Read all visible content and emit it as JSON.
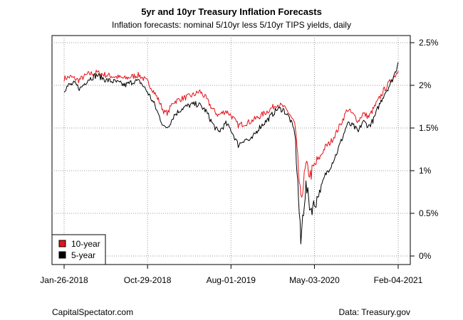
{
  "chart_data": {
    "type": "line",
    "title": "5yr and 10yr Treasury Inflation Forecasts",
    "subtitle": "Inflation forecasts: nominal 5/10yr less 5/10yr TIPS yields, daily",
    "xlabel": "",
    "ylabel": "",
    "x_ticks": [
      "Jan-26-2018",
      "Oct-29-2018",
      "Aug-01-2019",
      "May-03-2020",
      "Feb-04-2021"
    ],
    "y_ticks": [
      "0%",
      "0.5%",
      "1%",
      "1.5%",
      "2%",
      "2.5%"
    ],
    "ylim": [
      -0.1,
      2.6
    ],
    "xlim": [
      "2018-01-26",
      "2021-02-04"
    ],
    "grid": true,
    "legend_position": "bottom-left",
    "series": [
      {
        "name": "10-year",
        "color": "#e3131b",
        "points": [
          [
            "2018-01-26",
            2.08
          ],
          [
            "2018-02-15",
            2.1
          ],
          [
            "2018-03-15",
            2.06
          ],
          [
            "2018-04-15",
            2.13
          ],
          [
            "2018-05-15",
            2.15
          ],
          [
            "2018-06-15",
            2.12
          ],
          [
            "2018-07-15",
            2.1
          ],
          [
            "2018-08-15",
            2.08
          ],
          [
            "2018-09-15",
            2.11
          ],
          [
            "2018-10-01",
            2.12
          ],
          [
            "2018-10-29",
            2.04
          ],
          [
            "2018-11-15",
            1.95
          ],
          [
            "2018-12-01",
            1.85
          ],
          [
            "2018-12-24",
            1.68
          ],
          [
            "2019-01-05",
            1.68
          ],
          [
            "2019-01-20",
            1.8
          ],
          [
            "2019-02-15",
            1.84
          ],
          [
            "2019-03-15",
            1.87
          ],
          [
            "2019-04-01",
            1.89
          ],
          [
            "2019-04-20",
            1.93
          ],
          [
            "2019-05-10",
            1.85
          ],
          [
            "2019-06-01",
            1.72
          ],
          [
            "2019-06-20",
            1.65
          ],
          [
            "2019-07-15",
            1.7
          ],
          [
            "2019-08-01",
            1.65
          ],
          [
            "2019-08-25",
            1.53
          ],
          [
            "2019-09-10",
            1.55
          ],
          [
            "2019-10-01",
            1.57
          ],
          [
            "2019-11-01",
            1.63
          ],
          [
            "2019-12-01",
            1.7
          ],
          [
            "2019-12-31",
            1.78
          ],
          [
            "2020-01-20",
            1.75
          ],
          [
            "2020-02-10",
            1.67
          ],
          [
            "2020-02-28",
            1.55
          ],
          [
            "2020-03-09",
            1.1
          ],
          [
            "2020-03-19",
            0.63
          ],
          [
            "2020-03-25",
            0.8
          ],
          [
            "2020-04-05",
            1.05
          ],
          [
            "2020-04-20",
            0.95
          ],
          [
            "2020-05-03",
            1.05
          ],
          [
            "2020-05-20",
            1.15
          ],
          [
            "2020-06-08",
            1.28
          ],
          [
            "2020-06-25",
            1.33
          ],
          [
            "2020-07-15",
            1.45
          ],
          [
            "2020-08-05",
            1.6
          ],
          [
            "2020-08-20",
            1.72
          ],
          [
            "2020-09-10",
            1.65
          ],
          [
            "2020-09-25",
            1.58
          ],
          [
            "2020-10-10",
            1.67
          ],
          [
            "2020-10-30",
            1.63
          ],
          [
            "2020-11-15",
            1.73
          ],
          [
            "2020-12-01",
            1.83
          ],
          [
            "2020-12-20",
            1.95
          ],
          [
            "2021-01-10",
            2.05
          ],
          [
            "2021-01-25",
            2.12
          ],
          [
            "2021-02-04",
            2.17
          ]
        ]
      },
      {
        "name": "5-year",
        "color": "#000000",
        "points": [
          [
            "2018-01-26",
            1.95
          ],
          [
            "2018-02-10",
            2.0
          ],
          [
            "2018-03-01",
            2.02
          ],
          [
            "2018-03-20",
            1.96
          ],
          [
            "2018-04-15",
            2.07
          ],
          [
            "2018-05-15",
            2.12
          ],
          [
            "2018-06-15",
            2.06
          ],
          [
            "2018-07-15",
            2.04
          ],
          [
            "2018-08-15",
            2.0
          ],
          [
            "2018-09-15",
            2.05
          ],
          [
            "2018-10-05",
            2.04
          ],
          [
            "2018-10-29",
            1.92
          ],
          [
            "2018-11-20",
            1.78
          ],
          [
            "2018-12-05",
            1.65
          ],
          [
            "2018-12-24",
            1.5
          ],
          [
            "2019-01-05",
            1.52
          ],
          [
            "2019-01-25",
            1.65
          ],
          [
            "2019-02-20",
            1.73
          ],
          [
            "2019-03-20",
            1.77
          ],
          [
            "2019-04-15",
            1.78
          ],
          [
            "2019-05-10",
            1.7
          ],
          [
            "2019-06-01",
            1.55
          ],
          [
            "2019-06-20",
            1.45
          ],
          [
            "2019-07-15",
            1.55
          ],
          [
            "2019-08-01",
            1.48
          ],
          [
            "2019-08-25",
            1.3
          ],
          [
            "2019-09-15",
            1.37
          ],
          [
            "2019-10-05",
            1.35
          ],
          [
            "2019-11-01",
            1.5
          ],
          [
            "2019-12-01",
            1.6
          ],
          [
            "2019-12-31",
            1.72
          ],
          [
            "2020-01-20",
            1.72
          ],
          [
            "2020-02-10",
            1.62
          ],
          [
            "2020-02-28",
            1.45
          ],
          [
            "2020-03-09",
            0.85
          ],
          [
            "2020-03-19",
            0.15
          ],
          [
            "2020-03-25",
            0.45
          ],
          [
            "2020-04-05",
            0.82
          ],
          [
            "2020-04-20",
            0.55
          ],
          [
            "2020-05-03",
            0.6
          ],
          [
            "2020-05-20",
            0.75
          ],
          [
            "2020-06-08",
            0.95
          ],
          [
            "2020-06-25",
            1.05
          ],
          [
            "2020-07-15",
            1.2
          ],
          [
            "2020-08-05",
            1.4
          ],
          [
            "2020-08-20",
            1.55
          ],
          [
            "2020-09-10",
            1.52
          ],
          [
            "2020-09-25",
            1.45
          ],
          [
            "2020-10-10",
            1.58
          ],
          [
            "2020-10-30",
            1.52
          ],
          [
            "2020-11-15",
            1.6
          ],
          [
            "2020-12-01",
            1.75
          ],
          [
            "2020-12-20",
            1.9
          ],
          [
            "2021-01-10",
            2.02
          ],
          [
            "2021-01-25",
            2.15
          ],
          [
            "2021-02-04",
            2.27
          ]
        ]
      }
    ]
  },
  "footer": {
    "left": "CapitalSpectator.com",
    "right": "Data: Treasury.gov"
  }
}
